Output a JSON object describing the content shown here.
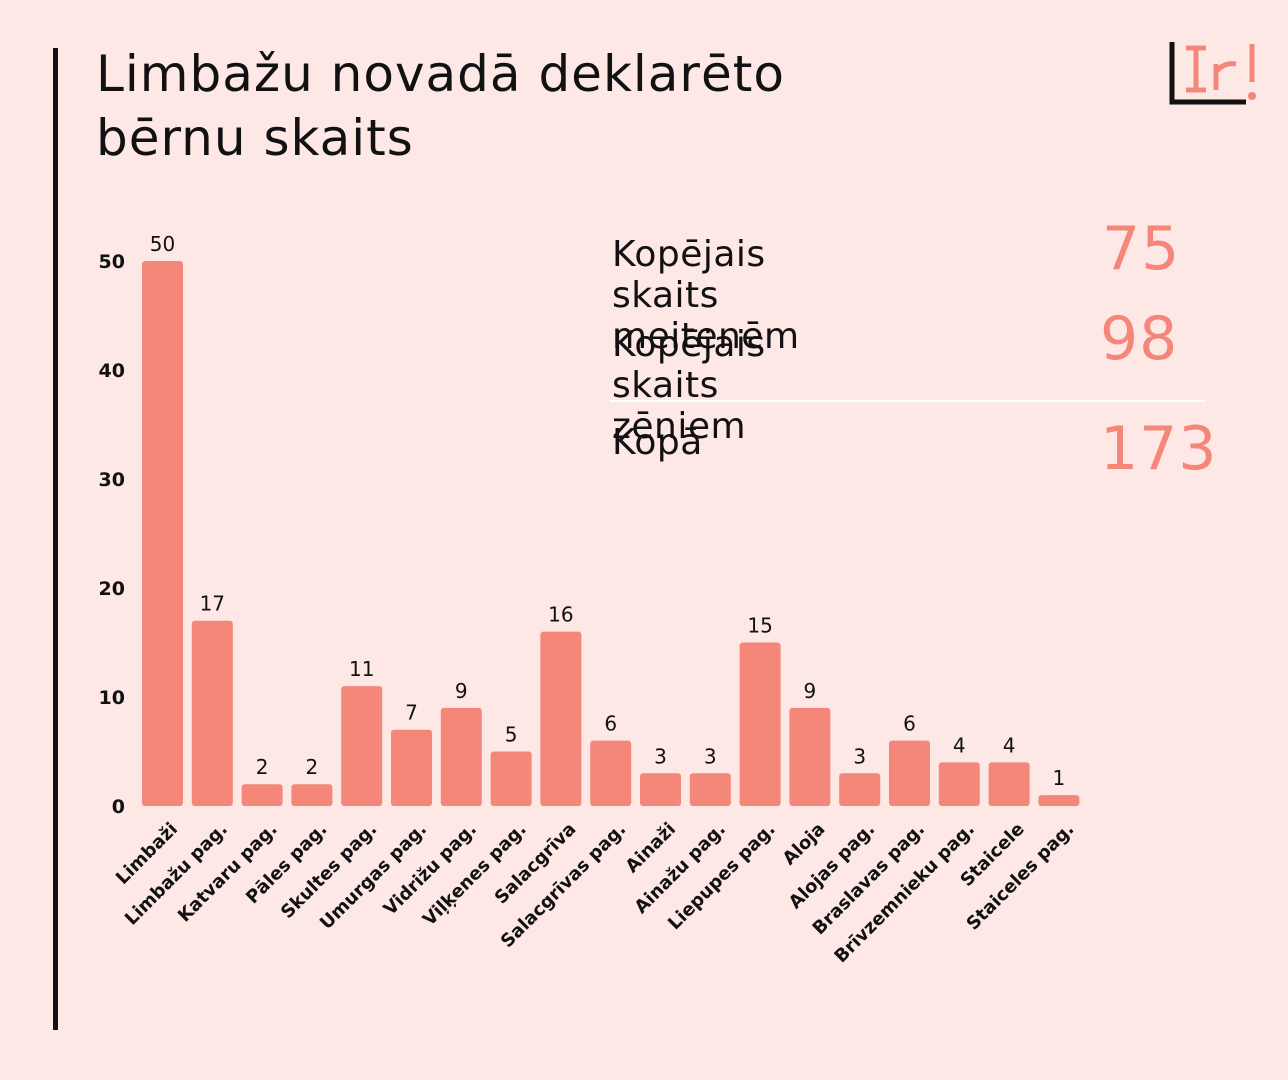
{
  "title": {
    "line1": "Limbažu novadā deklarēto",
    "line2": "bērnu skaits"
  },
  "logo": {
    "icon": "ir-logo-icon",
    "text": "Ir!"
  },
  "stats": {
    "girls_label": "Kopējais skaits meitenēm",
    "girls_value": "75",
    "boys_label": "Kopējais skaits zēniem",
    "boys_value": "98",
    "total_label": "Kopā",
    "total_value": "173"
  },
  "colors": {
    "background": "#fde8e6",
    "bar": "#f4867a",
    "accent_numbers": "#f4867a",
    "text": "#111111"
  },
  "chart_data": {
    "type": "bar",
    "title": "Limbažu novadā deklarēto bērnu skaits",
    "xlabel": "",
    "ylabel": "",
    "ylim": [
      0,
      50
    ],
    "yticks": [
      0,
      10,
      20,
      30,
      40,
      50
    ],
    "grid": false,
    "categories": [
      "Limbaži",
      "Limbažu pag.",
      "Katvaru pag.",
      "Pāles pag.",
      "Skultes pag.",
      "Umurgas pag.",
      "Vidrižu pag.",
      "Viļķenes pag.",
      "Salacgrīva",
      "Salacgrīvas pag.",
      "Ainaži",
      "Ainažu pag.",
      "Liepupes pag.",
      "Aloja",
      "Alojas pag.",
      "Braslavas pag.",
      "Brīvzemnieku pag.",
      "Staicele",
      "Staiceles pag."
    ],
    "values": [
      50,
      17,
      2,
      2,
      11,
      7,
      9,
      5,
      16,
      6,
      3,
      3,
      15,
      9,
      3,
      6,
      4,
      4,
      1
    ]
  }
}
